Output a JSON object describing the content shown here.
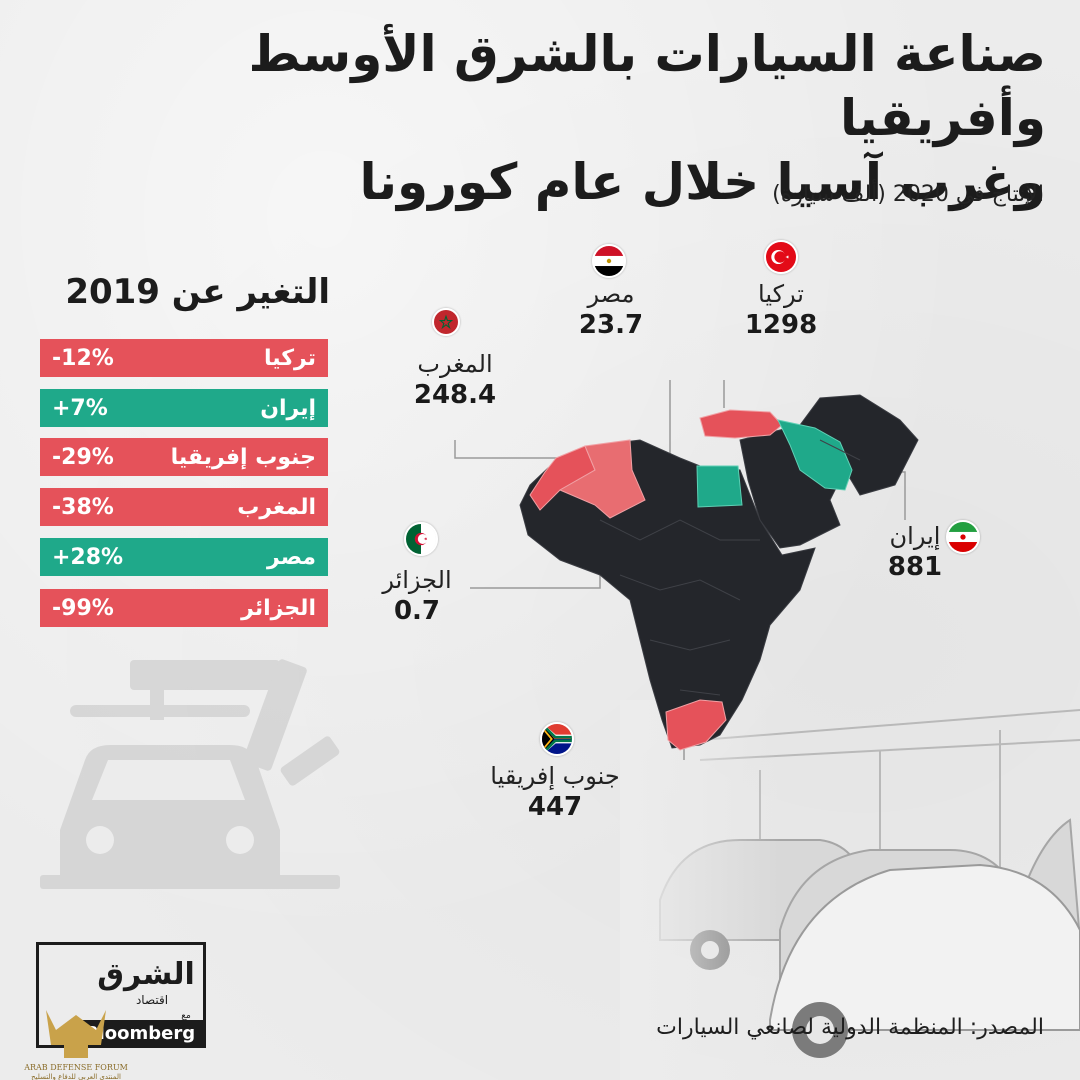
{
  "title_line1": "صناعة السيارات بالشرق الأوسط وأفريقيا",
  "title_line2": "وغرب آسيا خلال عام كورونا",
  "subtitle": "الإنتاج في 2020 (ألف سيارة)",
  "change_panel": {
    "title": "التغير عن 2019",
    "rows": [
      {
        "name": "تركيا",
        "value": "-12%",
        "trend": "negative"
      },
      {
        "name": "إيران",
        "value": "+7%",
        "trend": "positive"
      },
      {
        "name": "جنوب إفريقيا",
        "value": "-29%",
        "trend": "negative"
      },
      {
        "name": "المغرب",
        "value": "-38%",
        "trend": "negative"
      },
      {
        "name": "مصر",
        "value": "+28%",
        "trend": "positive"
      },
      {
        "name": "الجزائر",
        "value": "-99%",
        "trend": "negative"
      }
    ]
  },
  "map_labels": {
    "turkey": {
      "name": "تركيا",
      "value": "1298",
      "flag": "turkey-flag-icon"
    },
    "egypt": {
      "name": "مصر",
      "value": "23.7",
      "flag": "egypt-flag-icon"
    },
    "morocco": {
      "name": "المغرب",
      "value": "248.4",
      "flag": "morocco-flag-icon"
    },
    "algeria": {
      "name": "الجزائر",
      "value": "0.7",
      "flag": "algeria-flag-icon"
    },
    "iran": {
      "name": "إيران",
      "value": "881",
      "flag": "iran-flag-icon"
    },
    "south_africa": {
      "name": "جنوب إفريقيا",
      "value": "447",
      "flag": "south-africa-flag-icon"
    }
  },
  "source": "المصدر: المنظمة الدولية لصانعي السيارات",
  "logo": {
    "brand": "الشرق",
    "sub": "اقتصاد",
    "partner": "Bloomberg",
    "with": "مع"
  },
  "watermark": {
    "line1": "ARAB DEFENSE FORUM",
    "line2": "المنتدى العربي للدفاع والتسليح"
  },
  "colors": {
    "negative": "#e5525a",
    "positive": "#1fa98a",
    "land": "#24262b",
    "background": "#ececec"
  }
}
